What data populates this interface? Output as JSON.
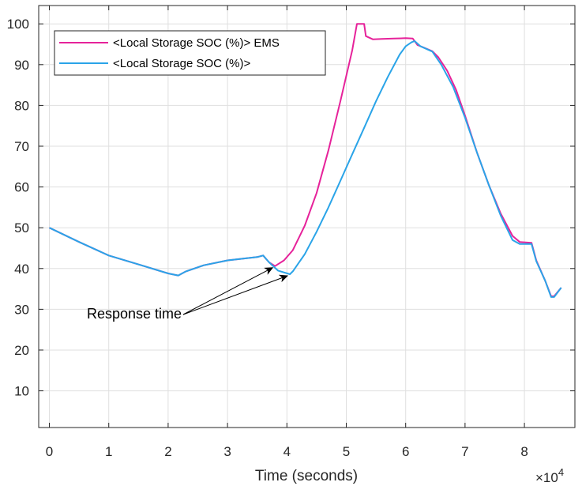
{
  "chart_data": {
    "type": "line",
    "title": "",
    "xlabel": "Time (seconds)",
    "ylabel": "",
    "x_exponent_label": "×10",
    "x_exponent_power": "4",
    "xlim": [
      -0.18,
      8.85
    ],
    "ylim": [
      1,
      104.5
    ],
    "grid": true,
    "legend_position": "top-left",
    "x_ticks": [
      {
        "value": 0,
        "label": "0"
      },
      {
        "value": 1,
        "label": "1"
      },
      {
        "value": 2,
        "label": "2"
      },
      {
        "value": 3,
        "label": "3"
      },
      {
        "value": 4,
        "label": "4"
      },
      {
        "value": 5,
        "label": "5"
      },
      {
        "value": 6,
        "label": "6"
      },
      {
        "value": 7,
        "label": "7"
      },
      {
        "value": 8,
        "label": "8"
      }
    ],
    "y_ticks": [
      {
        "value": 10,
        "label": "10"
      },
      {
        "value": 20,
        "label": "20"
      },
      {
        "value": 30,
        "label": "30"
      },
      {
        "value": 40,
        "label": "40"
      },
      {
        "value": 50,
        "label": "50"
      },
      {
        "value": 60,
        "label": "60"
      },
      {
        "value": 70,
        "label": "70"
      },
      {
        "value": 80,
        "label": "80"
      },
      {
        "value": 90,
        "label": "90"
      },
      {
        "value": 100,
        "label": "100"
      }
    ],
    "series": [
      {
        "name": "<Local Storage SOC (%)> EMS",
        "color": "#e6229a",
        "points": [
          [
            0,
            50
          ],
          [
            0.5,
            46.5
          ],
          [
            1.0,
            43.2
          ],
          [
            1.5,
            41.0
          ],
          [
            2.0,
            38.8
          ],
          [
            2.17,
            38.3
          ],
          [
            2.3,
            39.3
          ],
          [
            2.6,
            40.8
          ],
          [
            3.0,
            42.0
          ],
          [
            3.5,
            42.8
          ],
          [
            3.6,
            43.2
          ],
          [
            3.7,
            41.5
          ],
          [
            3.8,
            40.6
          ],
          [
            3.95,
            42.0
          ],
          [
            4.1,
            44.5
          ],
          [
            4.3,
            50.5
          ],
          [
            4.5,
            58.5
          ],
          [
            4.7,
            69.0
          ],
          [
            4.9,
            81.0
          ],
          [
            5.1,
            93.5
          ],
          [
            5.18,
            100.0
          ],
          [
            5.3,
            100.0
          ],
          [
            5.33,
            97.0
          ],
          [
            5.45,
            96.2
          ],
          [
            5.6,
            96.3
          ],
          [
            5.8,
            96.4
          ],
          [
            6.0,
            96.5
          ],
          [
            6.12,
            96.4
          ],
          [
            6.2,
            94.8
          ],
          [
            6.3,
            94.2
          ],
          [
            6.45,
            93.3
          ],
          [
            6.55,
            91.8
          ],
          [
            6.7,
            88.5
          ],
          [
            6.85,
            83.8
          ],
          [
            7.0,
            77.5
          ],
          [
            7.2,
            68.5
          ],
          [
            7.4,
            60.5
          ],
          [
            7.6,
            53.5
          ],
          [
            7.8,
            48.0
          ],
          [
            7.92,
            46.5
          ],
          [
            8.12,
            46.3
          ],
          [
            8.2,
            42.0
          ],
          [
            8.35,
            37.0
          ],
          [
            8.45,
            33.2
          ],
          [
            8.5,
            33.2
          ],
          [
            8.62,
            35.3
          ]
        ]
      },
      {
        "name": "<Local Storage SOC (%)>",
        "color": "#2aa4e8",
        "points": [
          [
            0,
            50
          ],
          [
            0.5,
            46.5
          ],
          [
            1.0,
            43.2
          ],
          [
            1.5,
            41.0
          ],
          [
            2.0,
            38.8
          ],
          [
            2.17,
            38.3
          ],
          [
            2.3,
            39.3
          ],
          [
            2.6,
            40.8
          ],
          [
            3.0,
            42.0
          ],
          [
            3.5,
            42.8
          ],
          [
            3.6,
            43.2
          ],
          [
            3.7,
            41.5
          ],
          [
            3.85,
            39.5
          ],
          [
            4.05,
            38.6
          ],
          [
            4.1,
            39.3
          ],
          [
            4.3,
            43.5
          ],
          [
            4.5,
            49.0
          ],
          [
            4.7,
            55.0
          ],
          [
            4.9,
            61.5
          ],
          [
            5.1,
            68.0
          ],
          [
            5.3,
            74.5
          ],
          [
            5.5,
            81.0
          ],
          [
            5.7,
            87.0
          ],
          [
            5.9,
            92.5
          ],
          [
            6.0,
            94.5
          ],
          [
            6.1,
            95.5
          ],
          [
            6.15,
            95.8
          ],
          [
            6.25,
            94.5
          ],
          [
            6.45,
            93.2
          ],
          [
            6.6,
            90.0
          ],
          [
            6.8,
            84.5
          ],
          [
            7.0,
            77.0
          ],
          [
            7.2,
            68.5
          ],
          [
            7.4,
            60.5
          ],
          [
            7.6,
            53.0
          ],
          [
            7.8,
            47.0
          ],
          [
            7.92,
            46.0
          ],
          [
            8.12,
            46.0
          ],
          [
            8.2,
            41.8
          ],
          [
            8.35,
            37.0
          ],
          [
            8.45,
            33.0
          ],
          [
            8.5,
            33.0
          ],
          [
            8.62,
            35.3
          ]
        ]
      }
    ],
    "annotation": {
      "text": "Response time",
      "arrow_targets": [
        [
          3.8,
          40.6
        ],
        [
          4.05,
          38.6
        ]
      ]
    }
  }
}
